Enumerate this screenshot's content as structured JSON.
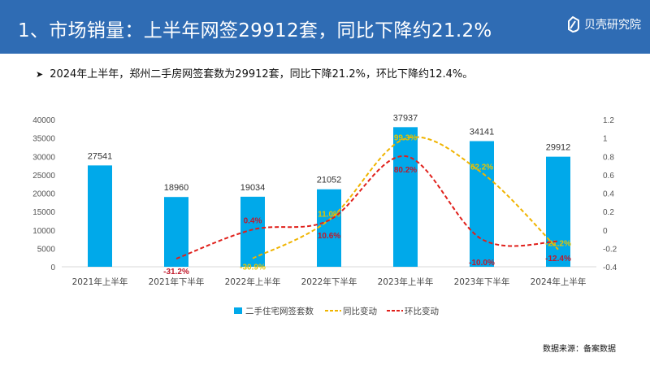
{
  "header": {
    "title": "1、市场销量：上半年网签29912套，同比下降约21.2%",
    "logo_text": "贝壳研究院",
    "bg_color": "#2f6cb4"
  },
  "summary": {
    "bullet_icon": "arrow-right-icon",
    "text": "2024年上半年，郑州二手房网签套数为29912套，同比下降21.2%，环比下降约12.4%。"
  },
  "chart_data": {
    "type": "bar",
    "categories": [
      "2021年上半年",
      "2021年下半年",
      "2022年上半年",
      "2022年下半年",
      "2023年上半年",
      "2023年下半年",
      "2024年上半年"
    ],
    "series": [
      {
        "name": "二手住宅网签套数",
        "kind": "bar",
        "axis": "left",
        "color": "#00a9ea",
        "values": [
          27541,
          18960,
          19034,
          21052,
          37937,
          34141,
          29912
        ],
        "labels": [
          "27541",
          "18960",
          "19034",
          "21052",
          "37937",
          "34141",
          "29912"
        ]
      },
      {
        "name": "同比变动",
        "kind": "line",
        "axis": "right",
        "color": "#f0b400",
        "label_color": "#e6c300",
        "values": [
          null,
          null,
          -0.309,
          0.11,
          0.993,
          0.622,
          -0.212
        ],
        "labels": [
          null,
          null,
          "-30.9%",
          "11.0%",
          "99.3%",
          "62.2%",
          "-21.2%"
        ]
      },
      {
        "name": "环比变动",
        "kind": "line",
        "axis": "right",
        "color": "#e0201b",
        "label_color": "#c0182a",
        "values": [
          null,
          -0.312,
          0.004,
          0.106,
          0.802,
          -0.1,
          -0.124
        ],
        "labels": [
          null,
          "-31.2%",
          "0.4%",
          "10.6%",
          "80.2%",
          "-10.0%",
          "-12.4%"
        ]
      }
    ],
    "y_left": {
      "min": 0,
      "max": 40000,
      "ticks": [
        "0",
        "5000",
        "10000",
        "15000",
        "20000",
        "25000",
        "30000",
        "35000",
        "40000"
      ]
    },
    "y_right": {
      "min": -0.4,
      "max": 1.2,
      "ticks": [
        "-0.4",
        "-0.2",
        "0",
        "0.2",
        "0.4",
        "0.6",
        "0.8",
        "1",
        "1.2"
      ]
    },
    "grid": false,
    "legend_position": "bottom",
    "watermark": "贝壳研究院"
  },
  "footer": {
    "source": "数据来源：备案数据"
  }
}
